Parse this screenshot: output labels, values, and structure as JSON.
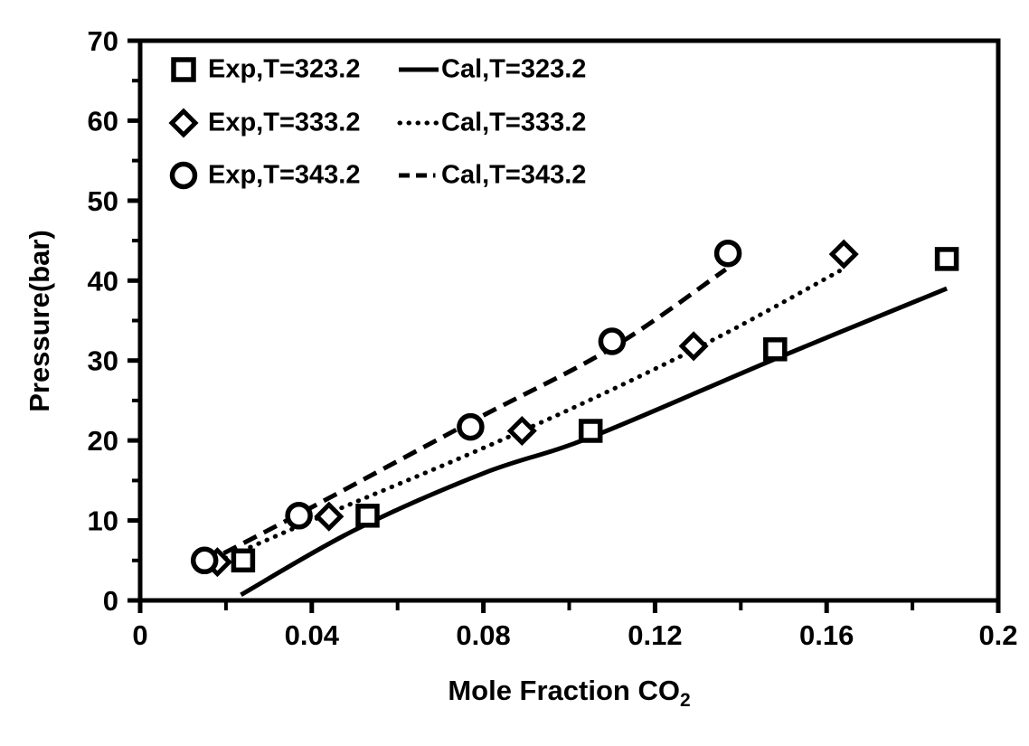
{
  "figure": {
    "background_color": "#ffffff",
    "ink_color": "#000000",
    "marker_fill_color": "#ffffff"
  },
  "chart_data": {
    "type": "scatter",
    "subtype": "scatter-with-calculated-lines",
    "title": "",
    "xlabel": "Mole Fraction CO2",
    "ylabel": "Pressure(bar)",
    "x_axis": {
      "label_main": "Mole Fraction CO",
      "label_sub": "2",
      "range": [
        0,
        0.2
      ],
      "major_ticks": [
        0,
        0.04,
        0.08,
        0.12,
        0.16,
        0.2
      ],
      "major_tick_labels": [
        "0",
        "0.04",
        "0.08",
        "0.12",
        "0.16",
        "0.2"
      ],
      "minor_ticks": [
        0.02,
        0.06,
        0.1,
        0.14,
        0.18
      ]
    },
    "y_axis": {
      "label": "Pressure(bar)",
      "range": [
        0,
        70
      ],
      "major_ticks": [
        0,
        10,
        20,
        30,
        40,
        50,
        60,
        70
      ],
      "major_tick_labels": [
        "0",
        "10",
        "20",
        "30",
        "40",
        "50",
        "60",
        "70"
      ],
      "minor_ticks": [
        5,
        15,
        25,
        35,
        45,
        55,
        65
      ]
    },
    "grid": false,
    "frame": "full-box",
    "series": [
      {
        "name": "Exp,T=323.2",
        "kind": "scatter",
        "marker": "square",
        "points": [
          [
            0.024,
            5.0
          ],
          [
            0.053,
            10.6
          ],
          [
            0.105,
            21.2
          ],
          [
            0.148,
            31.4
          ],
          [
            0.188,
            42.7
          ]
        ]
      },
      {
        "name": "Exp,T=333.2",
        "kind": "scatter",
        "marker": "diamond",
        "points": [
          [
            0.018,
            4.8
          ],
          [
            0.044,
            10.5
          ],
          [
            0.089,
            21.2
          ],
          [
            0.129,
            31.8
          ],
          [
            0.164,
            43.3
          ]
        ]
      },
      {
        "name": "Exp,T=343.2",
        "kind": "scatter",
        "marker": "circle",
        "points": [
          [
            0.015,
            5.0
          ],
          [
            0.037,
            10.6
          ],
          [
            0.077,
            21.7
          ],
          [
            0.11,
            32.4
          ],
          [
            0.137,
            43.4
          ]
        ]
      },
      {
        "name": "Cal,T=323.2",
        "kind": "line",
        "style": "solid",
        "points": [
          [
            0.0235,
            0.7
          ],
          [
            0.05,
            8.8
          ],
          [
            0.08,
            15.9
          ],
          [
            0.105,
            20.4
          ],
          [
            0.148,
            30.2
          ],
          [
            0.188,
            39.0
          ]
        ]
      },
      {
        "name": "Cal,T=333.2",
        "kind": "line",
        "style": "dotted",
        "points": [
          [
            0.016,
            4.4
          ],
          [
            0.044,
            10.9
          ],
          [
            0.075,
            17.9
          ],
          [
            0.105,
            25.1
          ],
          [
            0.135,
            33.0
          ],
          [
            0.163,
            41.2
          ]
        ]
      },
      {
        "name": "Cal,T=343.2",
        "kind": "line",
        "style": "dashed",
        "points": [
          [
            0.0148,
            4.6
          ],
          [
            0.037,
            10.8
          ],
          [
            0.077,
            22.3
          ],
          [
            0.11,
            31.6
          ],
          [
            0.1365,
            41.4
          ]
        ]
      }
    ],
    "legend": {
      "position": "top-left-inside",
      "rows": [
        {
          "exp_label": "Exp,T=323.2",
          "cal_label": "Cal,T=323.2",
          "marker": "square",
          "line_style": "solid"
        },
        {
          "exp_label": "Exp,T=333.2",
          "cal_label": "Cal,T=333.2",
          "marker": "diamond",
          "line_style": "dotted"
        },
        {
          "exp_label": "Exp,T=343.2",
          "cal_label": "Cal,T=343.2",
          "marker": "circle",
          "line_style": "dashed"
        }
      ]
    }
  }
}
